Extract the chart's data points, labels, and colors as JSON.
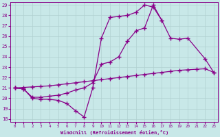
{
  "background_color": "#c8e8e8",
  "grid_color": "#b0d0d0",
  "line_color": "#880088",
  "xlabel": "Windchill (Refroidissement éolien,°C)",
  "xlim": [
    0,
    23
  ],
  "ylim": [
    18,
    29
  ],
  "xticks": [
    0,
    1,
    2,
    3,
    4,
    5,
    6,
    7,
    8,
    9,
    10,
    11,
    12,
    13,
    14,
    15,
    16,
    17,
    18,
    19,
    20,
    21,
    22,
    23
  ],
  "yticks": [
    18,
    19,
    20,
    21,
    22,
    23,
    24,
    25,
    26,
    27,
    28,
    29
  ],
  "line1_x": [
    0,
    1,
    2,
    3,
    4,
    5,
    6,
    7,
    8,
    9,
    10,
    11,
    12,
    13,
    14,
    15,
    16,
    17
  ],
  "line1_y": [
    21.0,
    20.9,
    20.0,
    19.9,
    19.9,
    19.8,
    19.5,
    18.8,
    18.2,
    21.0,
    25.8,
    27.8,
    27.9,
    28.0,
    28.3,
    29.0,
    28.8,
    27.5
  ],
  "line2_x": [
    0,
    1,
    2,
    3,
    4,
    5,
    6,
    7,
    8,
    9,
    10,
    11,
    12,
    13,
    14,
    15,
    16,
    17,
    18,
    19,
    20,
    21,
    22,
    23
  ],
  "line2_y": [
    21.0,
    21.05,
    21.1,
    21.15,
    21.2,
    21.3,
    21.4,
    21.5,
    21.6,
    21.7,
    21.8,
    21.9,
    22.0,
    22.1,
    22.2,
    22.3,
    22.4,
    22.5,
    22.6,
    22.7,
    22.75,
    22.8,
    22.85,
    22.5
  ],
  "line3_x": [
    0,
    1,
    2,
    3,
    4,
    5,
    6,
    7,
    8,
    9,
    10,
    11,
    12,
    13,
    14,
    15,
    16,
    17,
    18,
    19,
    20,
    22,
    23
  ],
  "line3_y": [
    21.0,
    20.9,
    20.1,
    20.1,
    20.2,
    20.3,
    20.5,
    20.8,
    21.0,
    21.5,
    23.3,
    23.5,
    24.0,
    25.5,
    26.5,
    26.8,
    29.0,
    27.5,
    25.8,
    25.7,
    25.8,
    23.8,
    22.5
  ]
}
